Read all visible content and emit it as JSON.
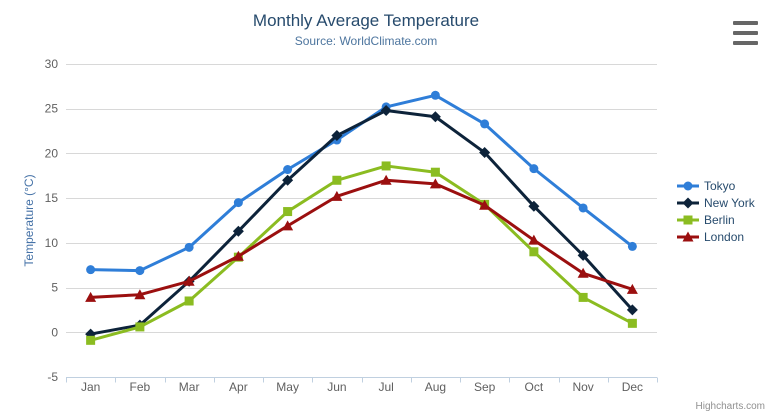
{
  "credits": {
    "label": "Highcharts.com"
  },
  "export_menu": {
    "icon": "hamburger-menu-icon"
  },
  "theme": {
    "background": "#ffffff",
    "title_color": "#274b6d",
    "subtitle_color": "#4d759e",
    "axis_label_color": "#606060",
    "axis_title_color": "#4572a7",
    "grid_color": "#d8d8d8",
    "axis_line_color": "#c0d0e0",
    "legend_text_color": "#274b6d",
    "credits_color": "#909090",
    "menu_icon_color": "#666666"
  },
  "chart_data": {
    "type": "line",
    "title": "Monthly Average Temperature",
    "subtitle": "Source: WorldClimate.com",
    "xlabel": "",
    "ylabel": "Temperature (°C)",
    "ylim": [
      -5,
      30
    ],
    "ytick_interval": 5,
    "grid": true,
    "legend_position": "right",
    "categories": [
      "Jan",
      "Feb",
      "Mar",
      "Apr",
      "May",
      "Jun",
      "Jul",
      "Aug",
      "Sep",
      "Oct",
      "Nov",
      "Dec"
    ],
    "series": [
      {
        "name": "Tokyo",
        "color": "#2f7ed8",
        "marker": "circle",
        "values": [
          7.0,
          6.9,
          9.5,
          14.5,
          18.2,
          21.5,
          25.2,
          26.5,
          23.3,
          18.3,
          13.9,
          9.6
        ]
      },
      {
        "name": "New York",
        "color": "#0d233a",
        "marker": "diamond",
        "values": [
          -0.2,
          0.8,
          5.7,
          11.3,
          17.0,
          22.0,
          24.8,
          24.1,
          20.1,
          14.1,
          8.6,
          2.5
        ]
      },
      {
        "name": "Berlin",
        "color": "#8bbc21",
        "marker": "square",
        "values": [
          -0.9,
          0.6,
          3.5,
          8.4,
          13.5,
          17.0,
          18.6,
          17.9,
          14.3,
          9.0,
          3.9,
          1.0
        ]
      },
      {
        "name": "London",
        "color": "#9b0f0f",
        "marker": "triangle",
        "values": [
          3.9,
          4.2,
          5.7,
          8.5,
          11.9,
          15.2,
          17.0,
          16.6,
          14.2,
          10.3,
          6.6,
          4.8
        ]
      }
    ]
  }
}
